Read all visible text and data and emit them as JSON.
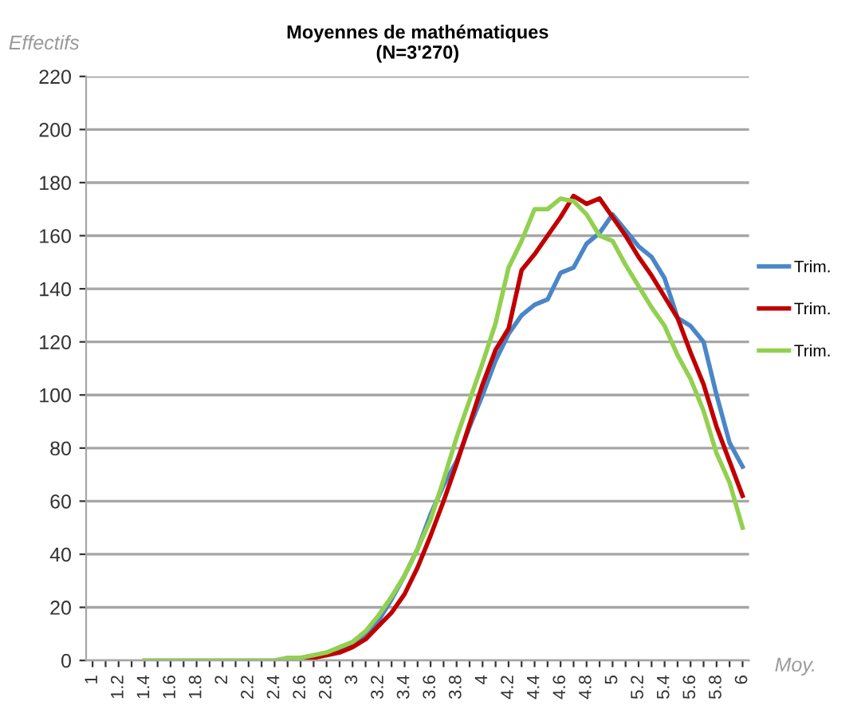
{
  "chart_data": {
    "type": "line",
    "title": "Moyennes de mathématiques\n(N=3'270)",
    "ylabel": "Effectifs",
    "xlabel": "Moy.",
    "categories": [
      "1",
      null,
      "1.2",
      null,
      "1.4",
      null,
      "1.6",
      null,
      "1.8",
      null,
      "2",
      null,
      "2.2",
      null,
      "2.4",
      null,
      "2.6",
      null,
      "2.8",
      null,
      "3",
      null,
      "3.2",
      null,
      "3.4",
      null,
      "3.6",
      null,
      "3.8",
      null,
      "4",
      null,
      "4.2",
      null,
      "4.4",
      null,
      "4.6",
      null,
      "4.8",
      null,
      "5",
      null,
      "5.2",
      null,
      "5.4",
      null,
      "5.6",
      null,
      "5.8",
      null,
      "6"
    ],
    "series": [
      {
        "name": "Trim.",
        "color": "#4a86c8",
        "values": [
          null,
          null,
          null,
          null,
          null,
          null,
          null,
          null,
          null,
          null,
          null,
          null,
          null,
          null,
          null,
          null,
          null,
          null,
          null,
          4,
          6,
          10,
          15,
          23,
          32,
          42,
          55,
          66,
          75,
          88,
          100,
          113,
          123,
          130,
          134,
          136,
          146,
          148,
          157,
          161,
          168,
          162,
          156,
          152,
          144,
          129,
          126,
          120,
          100,
          82,
          73
        ]
      },
      {
        "name": "Trim.",
        "color": "#c00000",
        "values": [
          null,
          null,
          null,
          null,
          null,
          null,
          null,
          null,
          null,
          null,
          null,
          null,
          null,
          null,
          null,
          0,
          0.5,
          1,
          2,
          3,
          5,
          8,
          13,
          18,
          25,
          35,
          47,
          60,
          74,
          89,
          104,
          117,
          125,
          147,
          153,
          160,
          167,
          175,
          172,
          174,
          167,
          160,
          152,
          145,
          137,
          129,
          116,
          104,
          88,
          75,
          62
        ]
      },
      {
        "name": "Trim.",
        "color": "#92d050",
        "values": [
          null,
          null,
          null,
          null,
          0,
          0,
          0,
          0,
          0,
          0,
          0,
          0,
          0,
          0,
          0,
          1,
          1,
          2,
          3,
          5,
          7,
          11,
          17,
          24,
          32,
          42,
          53,
          68,
          84,
          98,
          112,
          127,
          148,
          158,
          170,
          170,
          174,
          173,
          168,
          160,
          158,
          149,
          141,
          133,
          126,
          115,
          106,
          94,
          78,
          67,
          50
        ]
      }
    ],
    "ylim": [
      0,
      220
    ],
    "yticks": [
      0,
      20,
      40,
      60,
      80,
      100,
      120,
      140,
      160,
      180,
      200,
      220
    ],
    "grid": "y",
    "legend": "right",
    "marker": "none",
    "line_style": "solid"
  }
}
